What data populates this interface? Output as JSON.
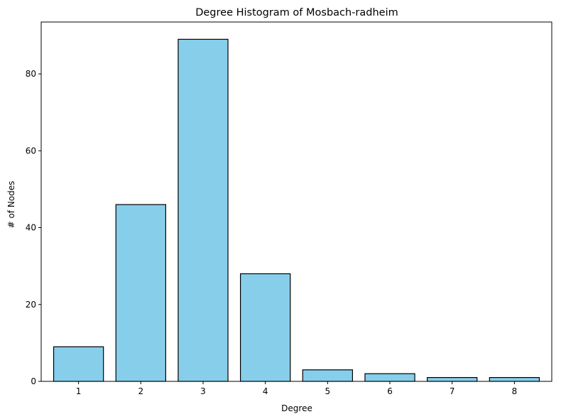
{
  "chart_data": {
    "type": "bar",
    "title": "Degree Histogram of Mosbach-radheim",
    "xlabel": "Degree",
    "ylabel": "# of Nodes",
    "categories": [
      "1",
      "2",
      "3",
      "4",
      "5",
      "6",
      "7",
      "8"
    ],
    "values": [
      9,
      46,
      89,
      28,
      3,
      2,
      1,
      1
    ],
    "ylim": [
      0,
      93.5
    ],
    "yticks": [
      0,
      20,
      40,
      60,
      80
    ],
    "grid": false,
    "legend": "none",
    "colors": {
      "bar_fill": "#87ceeb",
      "bar_edge": "#000000"
    }
  }
}
